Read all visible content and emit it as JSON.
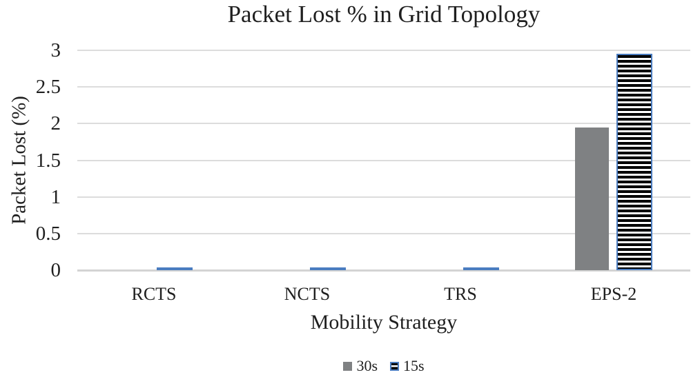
{
  "chart_data": {
    "type": "bar",
    "title": "Packet Lost % in Grid Topology",
    "xlabel": "Mobility Strategy",
    "ylabel": "Packet Lost (%)",
    "categories": [
      "RCTS",
      "NCTS",
      "TRS",
      "EPS-2"
    ],
    "series": [
      {
        "name": "30s",
        "style": "solid",
        "color": "#7f8183",
        "values": [
          0,
          0,
          0,
          1.95
        ]
      },
      {
        "name": "15s",
        "style": "striped",
        "stripe_color": "#000000",
        "fill_background": "#ffffff",
        "border_color": "#4a7cc0",
        "values": [
          0.02,
          0.02,
          0.02,
          2.95
        ]
      }
    ],
    "ylim": [
      0,
      3
    ],
    "ytick_step": 0.5,
    "ytick_labels": [
      "3",
      "2.5",
      "2",
      "1.5",
      "1",
      "0.5",
      "0"
    ],
    "grid": true,
    "legend_position": "bottom"
  },
  "colors": {
    "gridline": "#dcdcdc",
    "axis_line": "#d3d3d3",
    "text": "#1f1f1f",
    "bar_gray": "#7f8183",
    "bar_border_blue": "#4a7cc0"
  }
}
